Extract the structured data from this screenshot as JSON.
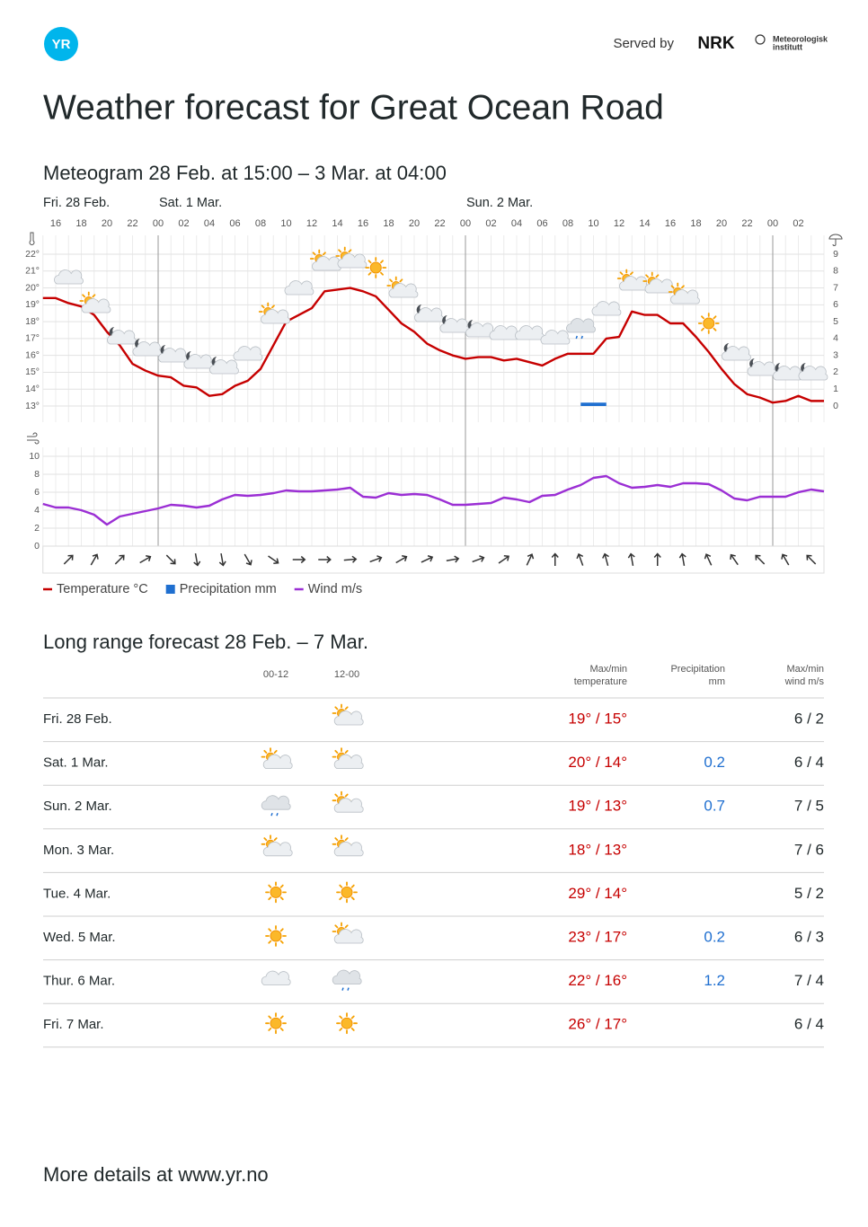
{
  "header": {
    "logo": "YR",
    "served_by": "Served by",
    "nrk": "NRK",
    "met": [
      "Meteorologisk",
      "institutt"
    ]
  },
  "title": "Weather forecast for Great Ocean Road",
  "chart_data": {
    "type": "line",
    "title": "Meteogram 28 Feb. at 15:00 – 3 Mar. at 04:00",
    "days": [
      "Fri. 28 Feb.",
      "Sat. 1 Mar.",
      "Sun. 2 Mar."
    ],
    "categories": [
      null,
      "16",
      null,
      "18",
      null,
      "20",
      null,
      "22",
      null,
      "00",
      null,
      "02",
      null,
      "04",
      null,
      "06",
      null,
      "08",
      null,
      "10",
      null,
      "12",
      null,
      "14",
      null,
      "16",
      null,
      "18",
      null,
      "20",
      null,
      "22",
      null,
      "00",
      null,
      "02",
      null,
      "04",
      null,
      "06",
      null,
      "08",
      null,
      "10",
      null,
      "12",
      null,
      "14",
      null,
      "16",
      null,
      "18",
      null,
      "20",
      null,
      "22",
      null,
      "00",
      null,
      "02",
      null,
      null
    ],
    "ylim": [
      13,
      22
    ],
    "yticks": [
      {
        "value": 13,
        "label": "13°"
      },
      {
        "value": 14,
        "label": "14°"
      },
      {
        "value": 15,
        "label": "15°"
      },
      {
        "value": 16,
        "label": "16°"
      },
      {
        "value": 17,
        "label": "17°"
      },
      {
        "value": 18,
        "label": "18°"
      },
      {
        "value": 19,
        "label": "19°"
      },
      {
        "value": 20,
        "label": "20°"
      },
      {
        "value": 21,
        "label": "21°"
      },
      {
        "value": 22,
        "label": "22°"
      }
    ],
    "y2lim": [
      0,
      9
    ],
    "y2ticks": [
      0,
      1,
      2,
      3,
      4,
      5,
      6,
      7,
      8,
      9
    ],
    "wind_ylim": [
      0,
      10
    ],
    "wind_yticks": [
      0,
      2,
      4,
      6,
      8,
      10
    ],
    "grid": true,
    "series": [
      {
        "name": "Temperature °C",
        "color": "#c60000",
        "values": [
          19.4,
          19.4,
          19.1,
          18.9,
          18.4,
          17.4,
          16.6,
          15.5,
          15.1,
          14.8,
          14.7,
          14.2,
          14.1,
          13.6,
          13.7,
          14.2,
          14.5,
          15.2,
          16.6,
          18.0,
          18.4,
          18.8,
          19.8,
          19.9,
          20.0,
          19.8,
          19.5,
          18.7,
          17.9,
          17.4,
          16.7,
          16.3,
          16.0,
          15.8,
          15.9,
          15.9,
          15.7,
          15.8,
          15.6,
          15.4,
          15.8,
          16.1,
          16.1,
          16.1,
          17.0,
          17.1,
          18.6,
          18.4,
          18.4,
          17.9,
          17.9,
          17.1,
          16.2,
          15.2,
          14.3,
          13.7,
          13.5,
          13.2,
          13.3,
          13.6,
          13.3,
          13.3
        ]
      },
      {
        "name": "Precipitation mm",
        "color": "#1f6fd0",
        "type": "bar",
        "axis": "y2",
        "values": [
          0,
          0,
          0,
          0,
          0,
          0,
          0,
          0,
          0,
          0,
          0,
          0,
          0,
          0,
          0,
          0,
          0,
          0,
          0,
          0,
          0,
          0,
          0,
          0,
          0,
          0,
          0,
          0,
          0,
          0,
          0,
          0,
          0,
          0,
          0,
          0,
          0,
          0,
          0,
          0,
          0,
          0,
          0.2,
          0.2,
          0,
          0,
          0,
          0,
          0,
          0,
          0,
          0,
          0,
          0,
          0,
          0,
          0,
          0,
          0,
          0,
          0,
          0
        ]
      },
      {
        "name": "Wind m/s",
        "color": "#9b2fd4",
        "axis": "wind",
        "values": [
          4.7,
          4.3,
          4.3,
          4.0,
          3.5,
          2.4,
          3.3,
          3.6,
          3.9,
          4.2,
          4.6,
          4.5,
          4.3,
          4.5,
          5.2,
          5.7,
          5.6,
          5.7,
          5.9,
          6.2,
          6.1,
          6.1,
          6.2,
          6.3,
          6.5,
          5.5,
          5.4,
          5.9,
          5.7,
          5.8,
          5.7,
          5.2,
          4.6,
          4.6,
          4.7,
          4.8,
          5.4,
          5.2,
          4.9,
          5.6,
          5.7,
          6.3,
          6.8,
          7.6,
          7.8,
          7.0,
          6.5,
          6.6,
          6.8,
          6.6,
          7.0,
          7.0,
          6.9,
          6.2,
          5.3,
          5.1,
          5.5,
          5.5,
          5.5,
          6.0,
          6.3,
          6.1
        ]
      }
    ],
    "wind_direction": [
      null,
      null,
      45,
      null,
      30,
      null,
      45,
      null,
      60,
      null,
      135,
      null,
      170,
      null,
      170,
      null,
      150,
      null,
      125,
      null,
      90,
      null,
      90,
      null,
      85,
      null,
      70,
      null,
      60,
      null,
      65,
      null,
      80,
      null,
      70,
      null,
      55,
      null,
      25,
      null,
      0,
      null,
      340,
      null,
      345,
      null,
      350,
      null,
      0,
      null,
      350,
      null,
      335,
      null,
      325,
      null,
      315,
      null,
      330,
      null,
      315,
      null
    ]
  },
  "forecast": {
    "title": "Long range forecast 28 Feb. – 7 Mar.",
    "columns": {
      "night": "00-12",
      "day": "12-00",
      "temperature": [
        "Max/min",
        "temperature"
      ],
      "precipitation": [
        "Precipitation",
        "mm"
      ],
      "wind": [
        "Max/min",
        "wind m/s"
      ]
    },
    "rows": [
      {
        "day": "Fri. 28 Feb.",
        "temperature": "19° / 15°",
        "wind": "6 / 2"
      },
      {
        "day": "Sat. 1 Mar.",
        "temperature": "20° / 14°",
        "precipitation": "0.2",
        "wind": "6 / 4"
      },
      {
        "day": "Sun. 2 Mar.",
        "temperature": "19° / 13°",
        "precipitation": "0.7",
        "wind": "7 / 5"
      },
      {
        "day": "Mon. 3 Mar.",
        "temperature": "18° / 13°",
        "wind": "7 / 6"
      },
      {
        "day": "Tue. 4 Mar.",
        "temperature": "29° / 14°",
        "wind": "5 / 2"
      },
      {
        "day": "Wed. 5 Mar.",
        "temperature": "23° / 17°",
        "precipitation": "0.2",
        "wind": "6 / 3"
      },
      {
        "day": "Thur. 6 Mar.",
        "temperature": "22° / 16°",
        "precipitation": "1.2",
        "wind": "7 / 4"
      },
      {
        "day": "Fri. 7 Mar.",
        "temperature": "26° / 17°",
        "wind": "6 / 4"
      }
    ]
  },
  "footer": "More details at www.yr.no"
}
